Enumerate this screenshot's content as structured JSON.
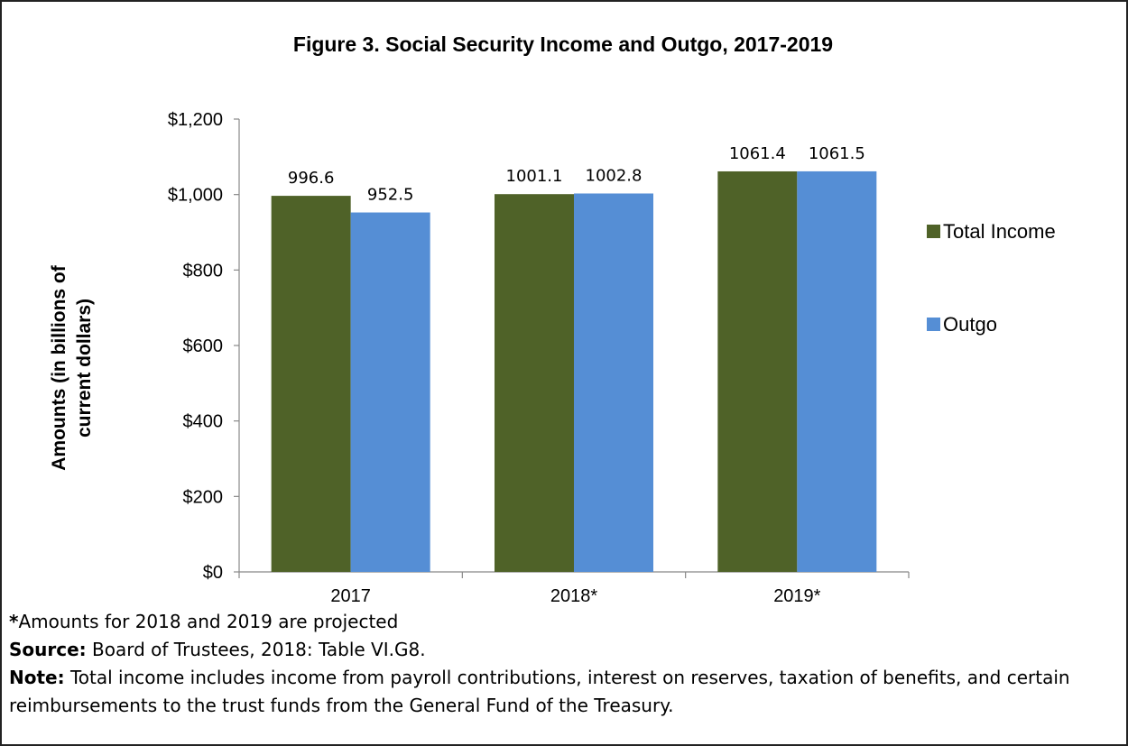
{
  "chart_data": {
    "type": "bar",
    "title": "Figure 3. Social Security Income and Outgo, 2017-2019",
    "ylabel_line1": "Amounts (in billions of",
    "ylabel_line2": "current dollars)",
    "xlabel": "",
    "categories": [
      "2017",
      "2018*",
      "2019*"
    ],
    "series": [
      {
        "name": "Total Income",
        "color": "#4f6228",
        "values": [
          996.6,
          1001.1,
          1061.4
        ]
      },
      {
        "name": "Outgo",
        "color": "#558ed5",
        "values": [
          952.5,
          1002.8,
          1061.5
        ]
      }
    ],
    "data_labels": [
      [
        "996.6",
        "1001.1",
        "1061.4"
      ],
      [
        "952.5",
        "1002.8",
        "1061.5"
      ]
    ],
    "ylim": [
      0,
      1200
    ],
    "yticks": [
      0,
      200,
      400,
      600,
      800,
      1000,
      1200
    ],
    "ytick_labels": [
      "$0",
      "$200",
      "$400",
      "$600",
      "$800",
      "$1,000",
      "$1,200"
    ],
    "grid": false,
    "legend_position": "right"
  },
  "notes": {
    "projected_mark": "*",
    "projected_text": "Amounts for 2018 and 2019 are projected",
    "source_label": "Source:",
    "source_text": " Board of Trustees, 2018: Table VI.G8.",
    "note_label": "Note:",
    "note_text": " Total income includes income from payroll contributions, interest on reserves, taxation of benefits, and certain reimbursements to the trust funds from the General Fund of the Treasury."
  }
}
